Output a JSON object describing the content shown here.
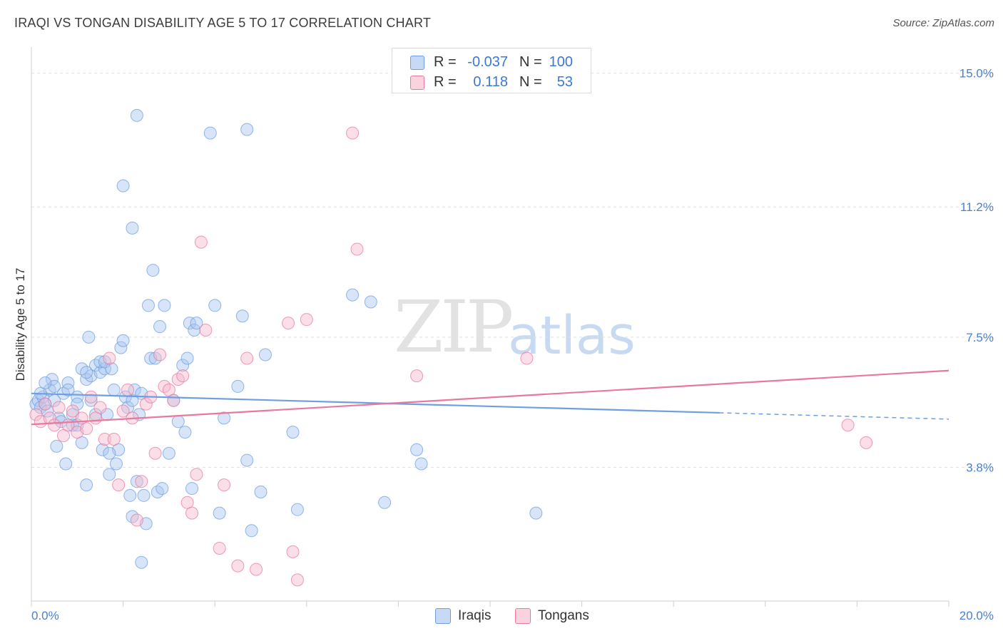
{
  "header": {
    "title": "IRAQI VS TONGAN DISABILITY AGE 5 TO 17 CORRELATION CHART",
    "source": "Source: ZipAtlas.com"
  },
  "watermark": {
    "zip": "ZIP",
    "atlas": "atlas"
  },
  "legend_top": {
    "rows": [
      {
        "r_label": "R =",
        "r_value": "-0.037",
        "n_label": "N =",
        "n_value": "100",
        "color": "#a9c5ef"
      },
      {
        "r_label": "R =",
        "r_value": "0.118",
        "n_label": "N =",
        "n_value": "53",
        "color": "#f7b8cb"
      }
    ]
  },
  "legend_bottom": {
    "items": [
      {
        "label": "Iraqis",
        "color": "#a9c5ef"
      },
      {
        "label": "Tongans",
        "color": "#f7b8cb"
      }
    ]
  },
  "chart_data": {
    "type": "scatter",
    "title": "IRAQI VS TONGAN DISABILITY AGE 5 TO 17 CORRELATION CHART",
    "xlabel": "",
    "ylabel": "Disability Age 5 to 17",
    "xlim": [
      0,
      20
    ],
    "ylim": [
      0,
      15.5
    ],
    "x_tick_labels": [
      {
        "value": 0,
        "label": "0.0%"
      },
      {
        "value": 20,
        "label": "20.0%"
      }
    ],
    "y_tick_labels": [
      {
        "value": 3.8,
        "label": "3.8%"
      },
      {
        "value": 7.5,
        "label": "7.5%"
      },
      {
        "value": 11.2,
        "label": "11.2%"
      },
      {
        "value": 15.0,
        "label": "15.0%"
      }
    ],
    "grid": true,
    "legend_position": "top-center",
    "series": [
      {
        "name": "Iraqis",
        "color": "#6f9fe0",
        "fill": "#a9c5ef",
        "trend": {
          "x0": 0,
          "y0": 5.9,
          "x1": 15.0,
          "y1": 5.35,
          "dash_to_x": 20,
          "dash_to_y": 5.17
        },
        "points": [
          [
            0.1,
            5.6
          ],
          [
            0.15,
            5.7
          ],
          [
            0.2,
            5.5
          ],
          [
            0.25,
            5.8
          ],
          [
            0.3,
            5.6
          ],
          [
            0.35,
            5.4
          ],
          [
            0.4,
            6.0
          ],
          [
            0.45,
            6.3
          ],
          [
            0.5,
            6.1
          ],
          [
            0.6,
            5.2
          ],
          [
            0.7,
            5.9
          ],
          [
            0.8,
            6.2
          ],
          [
            0.9,
            5.3
          ],
          [
            1.0,
            5.8
          ],
          [
            1.1,
            6.6
          ],
          [
            1.2,
            6.3
          ],
          [
            1.3,
            6.4
          ],
          [
            1.4,
            6.7
          ],
          [
            1.5,
            6.5
          ],
          [
            1.6,
            6.6
          ],
          [
            0.55,
            4.4
          ],
          [
            0.65,
            5.1
          ],
          [
            0.75,
            3.9
          ],
          [
            0.9,
            5.0
          ],
          [
            1.0,
            5.6
          ],
          [
            1.1,
            4.5
          ],
          [
            1.2,
            3.3
          ],
          [
            1.25,
            7.5
          ],
          [
            1.3,
            5.7
          ],
          [
            1.4,
            5.3
          ],
          [
            1.5,
            6.8
          ],
          [
            1.55,
            4.3
          ],
          [
            1.6,
            6.8
          ],
          [
            1.65,
            5.3
          ],
          [
            1.7,
            3.6
          ],
          [
            1.75,
            6.6
          ],
          [
            1.8,
            6.0
          ],
          [
            1.85,
            3.9
          ],
          [
            1.9,
            4.3
          ],
          [
            1.95,
            7.2
          ],
          [
            2.0,
            7.4
          ],
          [
            2.05,
            5.8
          ],
          [
            2.1,
            5.5
          ],
          [
            2.15,
            3.0
          ],
          [
            2.2,
            5.7
          ],
          [
            2.25,
            6.0
          ],
          [
            2.3,
            3.4
          ],
          [
            2.35,
            5.3
          ],
          [
            2.4,
            5.9
          ],
          [
            2.45,
            3.0
          ],
          [
            2.5,
            2.2
          ],
          [
            2.55,
            8.4
          ],
          [
            2.6,
            6.9
          ],
          [
            2.65,
            9.4
          ],
          [
            2.7,
            6.9
          ],
          [
            2.75,
            3.1
          ],
          [
            2.8,
            7.8
          ],
          [
            2.85,
            3.2
          ],
          [
            2.9,
            8.4
          ],
          [
            3.0,
            4.2
          ],
          [
            3.1,
            5.7
          ],
          [
            3.2,
            5.1
          ],
          [
            3.3,
            6.7
          ],
          [
            3.35,
            4.8
          ],
          [
            3.4,
            6.9
          ],
          [
            3.45,
            7.9
          ],
          [
            3.5,
            3.2
          ],
          [
            3.55,
            7.7
          ],
          [
            3.6,
            7.9
          ],
          [
            2.2,
            10.6
          ],
          [
            2.0,
            11.8
          ],
          [
            4.0,
            8.4
          ],
          [
            4.1,
            2.5
          ],
          [
            4.2,
            5.2
          ],
          [
            4.5,
            6.1
          ],
          [
            4.6,
            8.1
          ],
          [
            4.7,
            4.0
          ],
          [
            4.8,
            2.0
          ],
          [
            5.0,
            3.1
          ],
          [
            5.1,
            7.0
          ],
          [
            5.7,
            4.8
          ],
          [
            5.8,
            2.6
          ],
          [
            7.0,
            8.7
          ],
          [
            7.4,
            8.5
          ],
          [
            7.7,
            2.8
          ],
          [
            8.4,
            4.3
          ],
          [
            8.5,
            3.9
          ],
          [
            11.0,
            2.5
          ],
          [
            3.9,
            13.3
          ],
          [
            4.7,
            13.4
          ],
          [
            2.3,
            13.8
          ],
          [
            0.2,
            5.9
          ],
          [
            0.3,
            6.2
          ],
          [
            0.5,
            5.7
          ],
          [
            0.8,
            6.0
          ],
          [
            1.0,
            5.0
          ],
          [
            1.2,
            6.5
          ],
          [
            1.7,
            4.2
          ],
          [
            2.4,
            1.1
          ],
          [
            2.2,
            2.4
          ]
        ]
      },
      {
        "name": "Tongans",
        "color": "#e8799d",
        "fill": "#f7b8cb",
        "trend": {
          "x0": 0,
          "y0": 5.02,
          "x1": 20,
          "y1": 6.55
        },
        "points": [
          [
            0.1,
            5.3
          ],
          [
            0.2,
            5.1
          ],
          [
            0.3,
            5.6
          ],
          [
            0.4,
            5.2
          ],
          [
            0.5,
            5.0
          ],
          [
            0.6,
            5.5
          ],
          [
            0.7,
            4.7
          ],
          [
            0.8,
            5.0
          ],
          [
            0.9,
            5.4
          ],
          [
            1.0,
            4.8
          ],
          [
            1.1,
            5.2
          ],
          [
            1.2,
            4.9
          ],
          [
            1.3,
            5.8
          ],
          [
            1.4,
            5.2
          ],
          [
            1.5,
            5.5
          ],
          [
            1.6,
            4.6
          ],
          [
            1.7,
            6.9
          ],
          [
            1.8,
            4.6
          ],
          [
            1.9,
            3.3
          ],
          [
            2.0,
            5.4
          ],
          [
            2.1,
            6.0
          ],
          [
            2.2,
            5.2
          ],
          [
            2.3,
            2.3
          ],
          [
            2.4,
            3.4
          ],
          [
            2.5,
            5.6
          ],
          [
            2.6,
            5.8
          ],
          [
            2.7,
            4.2
          ],
          [
            2.8,
            7.0
          ],
          [
            2.9,
            6.1
          ],
          [
            3.0,
            6.0
          ],
          [
            3.1,
            5.7
          ],
          [
            3.2,
            6.3
          ],
          [
            3.3,
            6.4
          ],
          [
            3.4,
            2.8
          ],
          [
            3.5,
            2.5
          ],
          [
            3.6,
            3.6
          ],
          [
            3.7,
            10.2
          ],
          [
            3.8,
            7.7
          ],
          [
            4.1,
            1.5
          ],
          [
            4.2,
            3.3
          ],
          [
            4.5,
            1.0
          ],
          [
            4.7,
            6.9
          ],
          [
            4.9,
            0.9
          ],
          [
            5.6,
            7.9
          ],
          [
            5.7,
            1.4
          ],
          [
            5.8,
            0.6
          ],
          [
            6.0,
            8.0
          ],
          [
            7.0,
            13.3
          ],
          [
            7.1,
            10.0
          ],
          [
            8.4,
            6.4
          ],
          [
            10.8,
            6.9
          ],
          [
            17.8,
            5.0
          ],
          [
            18.2,
            4.5
          ]
        ]
      }
    ]
  }
}
